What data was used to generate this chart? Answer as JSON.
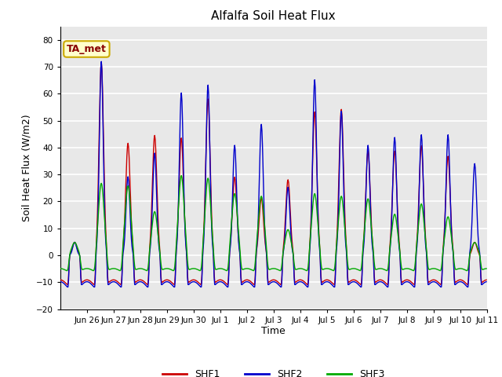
{
  "title": "Alfalfa Soil Heat Flux",
  "ylabel": "Soil Heat Flux (W/m2)",
  "xlabel": "Time",
  "ylim": [
    -20,
    85
  ],
  "yticks": [
    -20,
    -10,
    0,
    10,
    20,
    30,
    40,
    50,
    60,
    70,
    80
  ],
  "bg_color": "#e8e8e8",
  "grid_color": "white",
  "shf1_color": "#cc0000",
  "shf2_color": "#0000cc",
  "shf3_color": "#00aa00",
  "legend_label1": "SHF1",
  "legend_label2": "SHF2",
  "legend_label3": "SHF3",
  "annotation_text": "TA_met",
  "annotation_color": "#880000",
  "annotation_bg": "#ffffcc",
  "annotation_border": "#ccaa00",
  "n_days": 16,
  "pts_per_day": 48,
  "shf1_peaks": [
    5,
    74,
    43,
    46,
    45,
    60,
    30,
    22,
    29,
    55,
    56,
    40,
    40,
    42,
    38,
    5
  ],
  "shf2_peaks": [
    5,
    74,
    30,
    39,
    62,
    65,
    42,
    50,
    26,
    67,
    55,
    42,
    45,
    46,
    46,
    35
  ],
  "shf3_peaks": [
    5,
    28,
    27,
    17,
    31,
    30,
    24,
    23,
    10,
    24,
    23,
    22,
    16,
    20,
    15,
    5
  ],
  "shf1_night": -13,
  "shf2_night": -14,
  "shf3_night": -7,
  "tick_labels": [
    "Jun 26",
    "Jun 27",
    "Jun 28",
    "Jun 29",
    "Jun 30",
    "Jul 1",
    "Jul 2",
    "Jul 3",
    "Jul 4",
    "Jul 5",
    "Jul 6",
    "Jul 7",
    "Jul 8",
    "Jul 9",
    "Jul 10",
    "Jul 11"
  ],
  "start_day_label": "Jun"
}
